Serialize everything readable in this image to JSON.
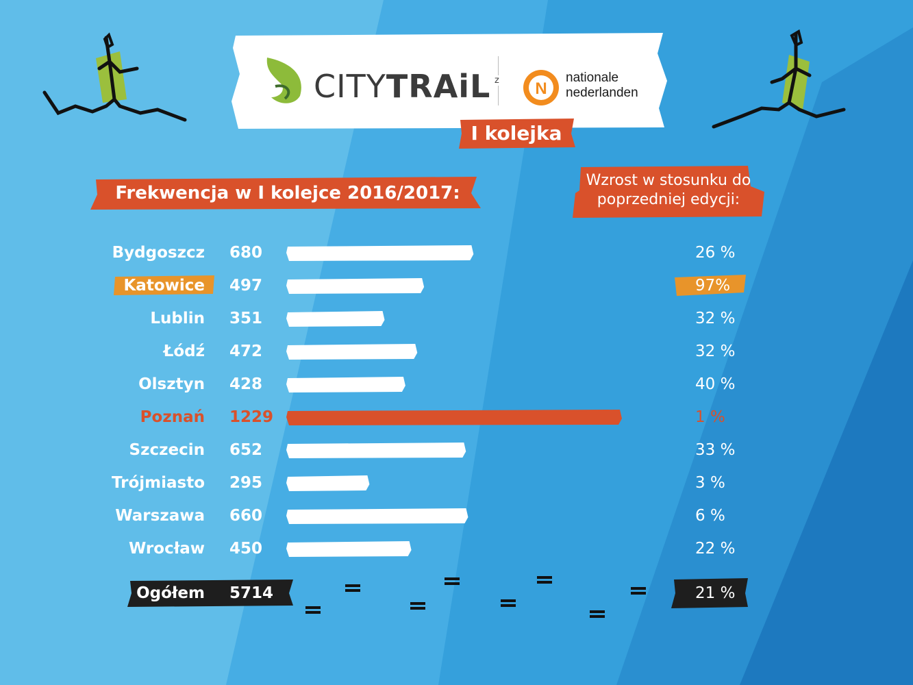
{
  "header": {
    "brand_thin": "CITY",
    "brand_bold": "TRAiL",
    "connector": "z",
    "sponsor_line1": "nationale",
    "sponsor_line2": "nederlanden",
    "badge": "I kolejka"
  },
  "colors": {
    "accent": "#d9512b",
    "highlight": "#e8942a",
    "bar": "#ffffff",
    "total_bg": "#1e1e1e",
    "background": "#3aa6e0"
  },
  "chart_data": {
    "type": "bar",
    "title": "Frekwencja w I kolejce 2016/2017:",
    "secondary_title": "Wzrost w stosunku do poprzedniej edycji:",
    "categories": [
      "Bydgoszcz",
      "Katowice",
      "Lublin",
      "Łódź",
      "Olsztyn",
      "Poznań",
      "Szczecin",
      "Trójmiasto",
      "Warszawa",
      "Wrocław"
    ],
    "values": [
      680,
      497,
      351,
      472,
      428,
      1229,
      652,
      295,
      660,
      450
    ],
    "growth": [
      "26 %",
      "97%",
      "32 %",
      "32 %",
      "40 %",
      "1 %",
      "33 %",
      "3 %",
      "6 %",
      "22 %"
    ],
    "highlighted": {
      "Katowice": "orange",
      "Poznań": "red"
    },
    "total": {
      "label": "Ogółem",
      "value": 5714,
      "growth": "21 %"
    },
    "xlim": [
      0,
      1229
    ],
    "orientation": "horizontal"
  }
}
